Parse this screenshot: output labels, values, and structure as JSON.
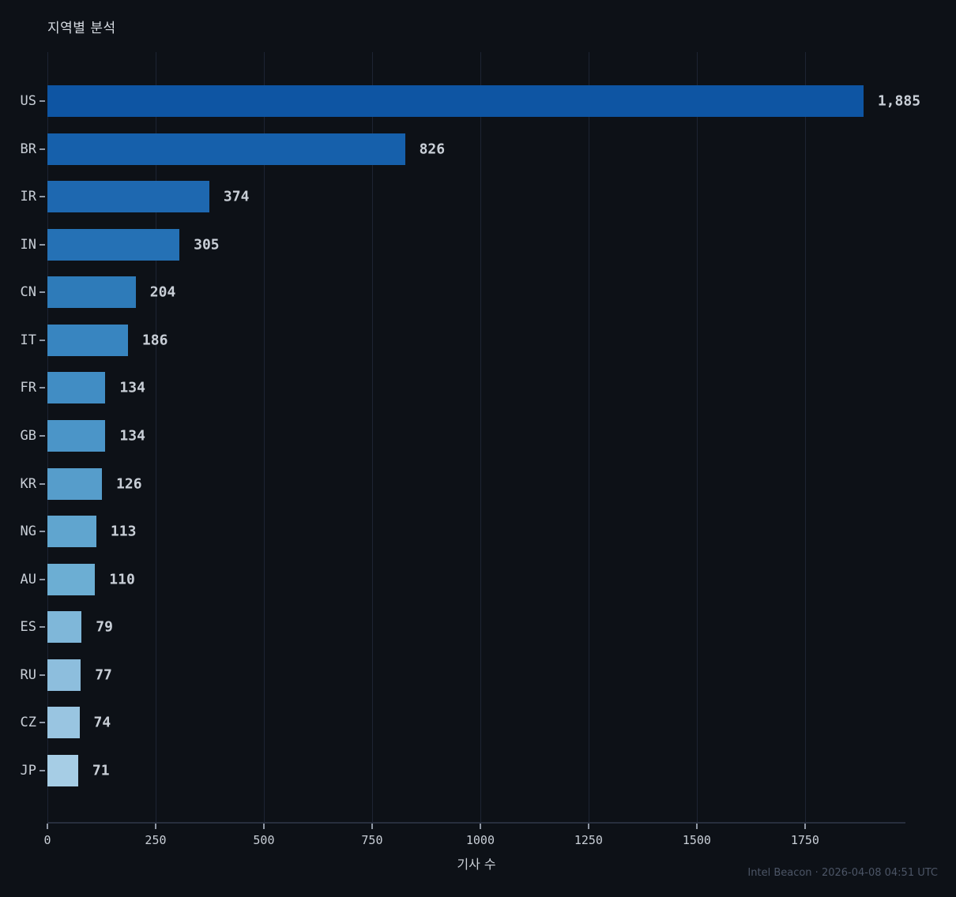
{
  "title": "지역별 분석",
  "footer": "Intel Beacon · 2026-04-08 04:51 UTC",
  "chart_data": {
    "type": "bar",
    "orientation": "horizontal",
    "title": "지역별 분석",
    "xlabel": "기사 수",
    "ylabel": "",
    "categories": [
      "US",
      "BR",
      "IR",
      "IN",
      "CN",
      "IT",
      "FR",
      "GB",
      "KR",
      "NG",
      "AU",
      "ES",
      "RU",
      "CZ",
      "JP"
    ],
    "values": [
      1885,
      826,
      374,
      305,
      204,
      186,
      134,
      134,
      126,
      113,
      110,
      79,
      77,
      74,
      71
    ],
    "value_labels": [
      "1,885",
      "826",
      "374",
      "305",
      "204",
      "186",
      "134",
      "134",
      "126",
      "113",
      "110",
      "79",
      "77",
      "74",
      "71"
    ],
    "bar_colors": [
      "#0e55a3",
      "#1660ab",
      "#1e68b0",
      "#2571b5",
      "#2e7bb9",
      "#3885c0",
      "#418dc4",
      "#4b95c8",
      "#569dcb",
      "#60a5cf",
      "#6caed3",
      "#7fb7d9",
      "#8dbedd",
      "#99c5e1",
      "#a6cde5"
    ],
    "xticks": [
      0,
      250,
      500,
      750,
      1000,
      1250,
      1500,
      1750
    ],
    "xtick_labels": [
      "0",
      "250",
      "500",
      "750",
      "1000",
      "1250",
      "1500",
      "1750"
    ],
    "xlim": [
      0,
      1982
    ],
    "grid": "vertical",
    "legend": "none",
    "background": "#0d1117"
  }
}
